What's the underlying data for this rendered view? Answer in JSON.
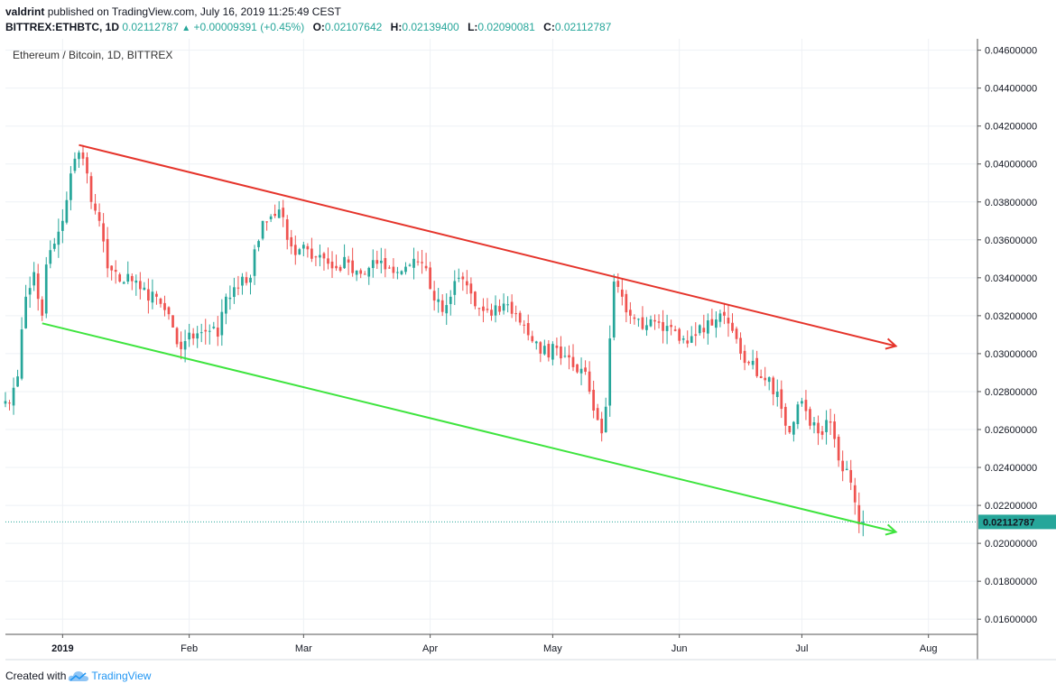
{
  "header": {
    "author": "valdrint",
    "published_text": "published on TradingView.com, July 16, 2019 11:25:49 CEST",
    "symbol": "BITTREX:ETHBTC, 1D",
    "last": "0.02112787",
    "change": "+0.00009391 (+0.45%)",
    "o_label": "O:",
    "o_value": "0.02107642",
    "h_label": "H:",
    "h_value": "0.02139400",
    "l_label": "L:",
    "l_value": "0.02090081",
    "c_label": "C:",
    "c_value": "0.02112787"
  },
  "footer": {
    "created_with": "Created with",
    "brand": "TradingView"
  },
  "colors": {
    "up": "#26a69a",
    "down": "#ef5350",
    "resistance": "#e5342b",
    "support": "#3ee43e",
    "price_line": "#26a69a",
    "grid": "#eef1f5",
    "axis_border": "#555555"
  },
  "chart_data": {
    "type": "candlestick",
    "title": "Ethereum / Bitcoin, 1D, BITTREX",
    "y_axis_side": "right",
    "ylim": [
      0.0152,
      0.0466
    ],
    "y_ticks": [
      "0.04600000",
      "0.04400000",
      "0.04200000",
      "0.04000000",
      "0.03800000",
      "0.03600000",
      "0.03400000",
      "0.03200000",
      "0.03000000",
      "0.02800000",
      "0.02600000",
      "0.02400000",
      "0.02200000",
      "0.02000000",
      "0.01800000",
      "0.01600000"
    ],
    "x_range": [
      "2018-12-18",
      "2019-08-13"
    ],
    "x_ticks": [
      {
        "date": "2019-01-01",
        "label": "2019",
        "bold": true
      },
      {
        "date": "2019-02-01",
        "label": "Feb"
      },
      {
        "date": "2019-03-01",
        "label": "Mar"
      },
      {
        "date": "2019-04-01",
        "label": "Apr"
      },
      {
        "date": "2019-05-01",
        "label": "May"
      },
      {
        "date": "2019-06-01",
        "label": "Jun"
      },
      {
        "date": "2019-07-01",
        "label": "Jul"
      },
      {
        "date": "2019-08-01",
        "label": "Aug"
      }
    ],
    "last_price": {
      "value": 0.02112787,
      "label": "0.02112787"
    },
    "trendlines": [
      {
        "name": "resistance",
        "from": {
          "date": "2019-01-05",
          "price": 0.041
        },
        "to": {
          "date": "2019-07-24",
          "price": 0.0304
        },
        "arrow": true
      },
      {
        "name": "support",
        "from": {
          "date": "2018-12-27",
          "price": 0.0316
        },
        "to": {
          "date": "2019-07-24",
          "price": 0.0206
        },
        "arrow": true
      }
    ],
    "close_keypoints": [
      [
        "2018-12-18",
        0.0275
      ],
      [
        "2018-12-20",
        0.0282
      ],
      [
        "2018-12-21",
        0.0288
      ],
      [
        "2018-12-23",
        0.033
      ],
      [
        "2018-12-25",
        0.0343
      ],
      [
        "2018-12-27",
        0.032
      ],
      [
        "2018-12-28",
        0.0347
      ],
      [
        "2018-12-30",
        0.0358
      ],
      [
        "2019-01-01",
        0.037
      ],
      [
        "2019-01-03",
        0.0395
      ],
      [
        "2019-01-05",
        0.0406
      ],
      [
        "2019-01-07",
        0.0395
      ],
      [
        "2019-01-08",
        0.038
      ],
      [
        "2019-01-10",
        0.037
      ],
      [
        "2019-01-12",
        0.0345
      ],
      [
        "2019-01-15",
        0.0338
      ],
      [
        "2019-01-17",
        0.0342
      ],
      [
        "2019-01-20",
        0.0334
      ],
      [
        "2019-01-24",
        0.033
      ],
      [
        "2019-01-26",
        0.0323
      ],
      [
        "2019-01-29",
        0.0305
      ],
      [
        "2019-02-02",
        0.0308
      ],
      [
        "2019-02-06",
        0.0312
      ],
      [
        "2019-02-08",
        0.0309
      ],
      [
        "2019-02-09",
        0.0322
      ],
      [
        "2019-02-12",
        0.0335
      ],
      [
        "2019-02-16",
        0.034
      ],
      [
        "2019-02-17",
        0.0355
      ],
      [
        "2019-02-19",
        0.037
      ],
      [
        "2019-02-23",
        0.0376
      ],
      [
        "2019-02-25",
        0.036
      ],
      [
        "2019-02-27",
        0.0352
      ],
      [
        "2019-03-02",
        0.0355
      ],
      [
        "2019-03-05",
        0.0352
      ],
      [
        "2019-03-08",
        0.0345
      ],
      [
        "2019-03-12",
        0.0348
      ],
      [
        "2019-03-16",
        0.0342
      ],
      [
        "2019-03-20",
        0.0349
      ],
      [
        "2019-03-24",
        0.0343
      ],
      [
        "2019-03-28",
        0.035
      ],
      [
        "2019-03-31",
        0.0345
      ],
      [
        "2019-04-02",
        0.0328
      ],
      [
        "2019-04-04",
        0.0322
      ],
      [
        "2019-04-06",
        0.033
      ],
      [
        "2019-04-08",
        0.034
      ],
      [
        "2019-04-10",
        0.0336
      ],
      [
        "2019-04-12",
        0.0325
      ],
      [
        "2019-04-16",
        0.032
      ],
      [
        "2019-04-20",
        0.0326
      ],
      [
        "2019-04-24",
        0.0315
      ],
      [
        "2019-04-28",
        0.03
      ],
      [
        "2019-05-02",
        0.0303
      ],
      [
        "2019-05-05",
        0.0298
      ],
      [
        "2019-05-08",
        0.0292
      ],
      [
        "2019-05-10",
        0.028
      ],
      [
        "2019-05-12",
        0.0265
      ],
      [
        "2019-05-13",
        0.0258
      ],
      [
        "2019-05-14",
        0.0272
      ],
      [
        "2019-05-15",
        0.0308
      ],
      [
        "2019-05-16",
        0.0338
      ],
      [
        "2019-05-18",
        0.033
      ],
      [
        "2019-05-20",
        0.032
      ],
      [
        "2019-05-24",
        0.0315
      ],
      [
        "2019-05-28",
        0.0312
      ],
      [
        "2019-06-02",
        0.0308
      ],
      [
        "2019-06-06",
        0.0315
      ],
      [
        "2019-06-10",
        0.0318
      ],
      [
        "2019-06-12",
        0.032
      ],
      [
        "2019-06-14",
        0.0312
      ],
      [
        "2019-06-16",
        0.03
      ],
      [
        "2019-06-18",
        0.0295
      ],
      [
        "2019-06-22",
        0.0286
      ],
      [
        "2019-06-25",
        0.028
      ],
      [
        "2019-06-27",
        0.0262
      ],
      [
        "2019-06-29",
        0.0264
      ],
      [
        "2019-07-01",
        0.0275
      ],
      [
        "2019-07-03",
        0.0262
      ],
      [
        "2019-07-05",
        0.0258
      ],
      [
        "2019-07-07",
        0.0265
      ],
      [
        "2019-07-09",
        0.0255
      ],
      [
        "2019-07-11",
        0.0238
      ],
      [
        "2019-07-13",
        0.0232
      ],
      [
        "2019-07-15",
        0.021
      ],
      [
        "2019-07-16",
        0.02112787
      ]
    ]
  }
}
